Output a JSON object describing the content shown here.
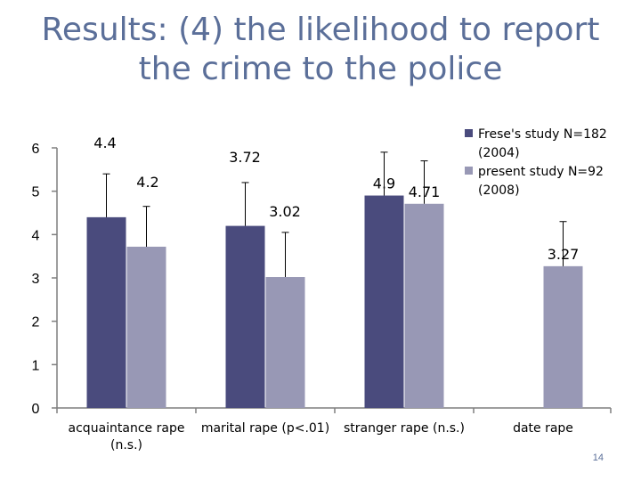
{
  "slide": {
    "title_line1": "Results: (4) the likelihood to report",
    "title_line2": "the crime to the police",
    "page_number": "14"
  },
  "colors": {
    "series1": "#4a4b7d",
    "series2": "#9898b5",
    "title": "#5b6f99",
    "axis": "#7f7f7f"
  },
  "chart_data": {
    "type": "bar",
    "title": "",
    "xlabel": "",
    "ylabel": "",
    "ylim": [
      0,
      6
    ],
    "yticks": [
      0,
      1,
      2,
      3,
      4,
      5,
      6
    ],
    "categories": [
      "acquaintance rape (n.s.)",
      "marital rape (p<.01)",
      "stranger rape (n.s.)",
      "date rape"
    ],
    "category_label_lines": [
      [
        "acquaintance rape",
        "(n.s.)"
      ],
      [
        "marital rape (p<.01)"
      ],
      [
        "stranger rape (n.s.)"
      ],
      [
        "date rape"
      ]
    ],
    "series": [
      {
        "name": "Frese's study N=182 (2004)",
        "legend_lines": [
          "Frese's study N=182",
          "(2004)"
        ],
        "values": [
          4.4,
          4.2,
          4.9,
          null
        ],
        "labels": [
          "4.4",
          "4.2",
          "4.9",
          ""
        ]
      },
      {
        "name": "present study N=92 (2008)",
        "legend_lines": [
          "present study N=92",
          "(2008)"
        ],
        "values": [
          3.72,
          3.02,
          4.71,
          3.27
        ],
        "labels": [
          "3.72",
          "3.02",
          "4.71",
          "3.27"
        ]
      }
    ],
    "error_bars_upper": [
      [
        5.4,
        5.2,
        5.9,
        null
      ],
      [
        4.65,
        4.05,
        5.7,
        4.3
      ]
    ],
    "legend_position": "top-right",
    "grid": false
  }
}
